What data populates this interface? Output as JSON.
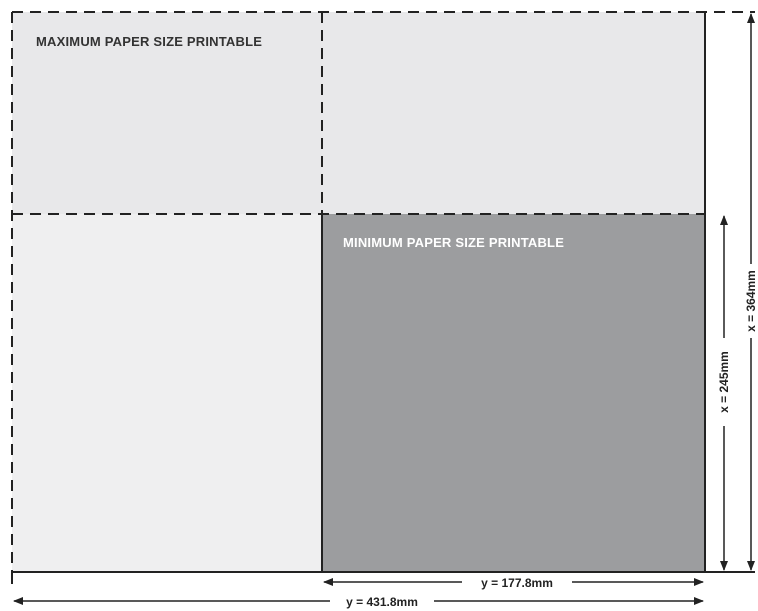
{
  "labels": {
    "max": "MAXIMUM PAPER SIZE PRINTABLE",
    "min": "MINIMUM PAPER SIZE PRINTABLE"
  },
  "dimensions": {
    "x_max": "x = 364mm",
    "x_min": "x = 245mm",
    "y_min": "y = 177.8mm",
    "y_max": "y = 431.8mm"
  },
  "colors": {
    "max_area": "#e8e8ea",
    "min_area": "#9c9d9f",
    "lines": "#222222",
    "min_label": "#ffffff",
    "max_label": "#333333"
  }
}
